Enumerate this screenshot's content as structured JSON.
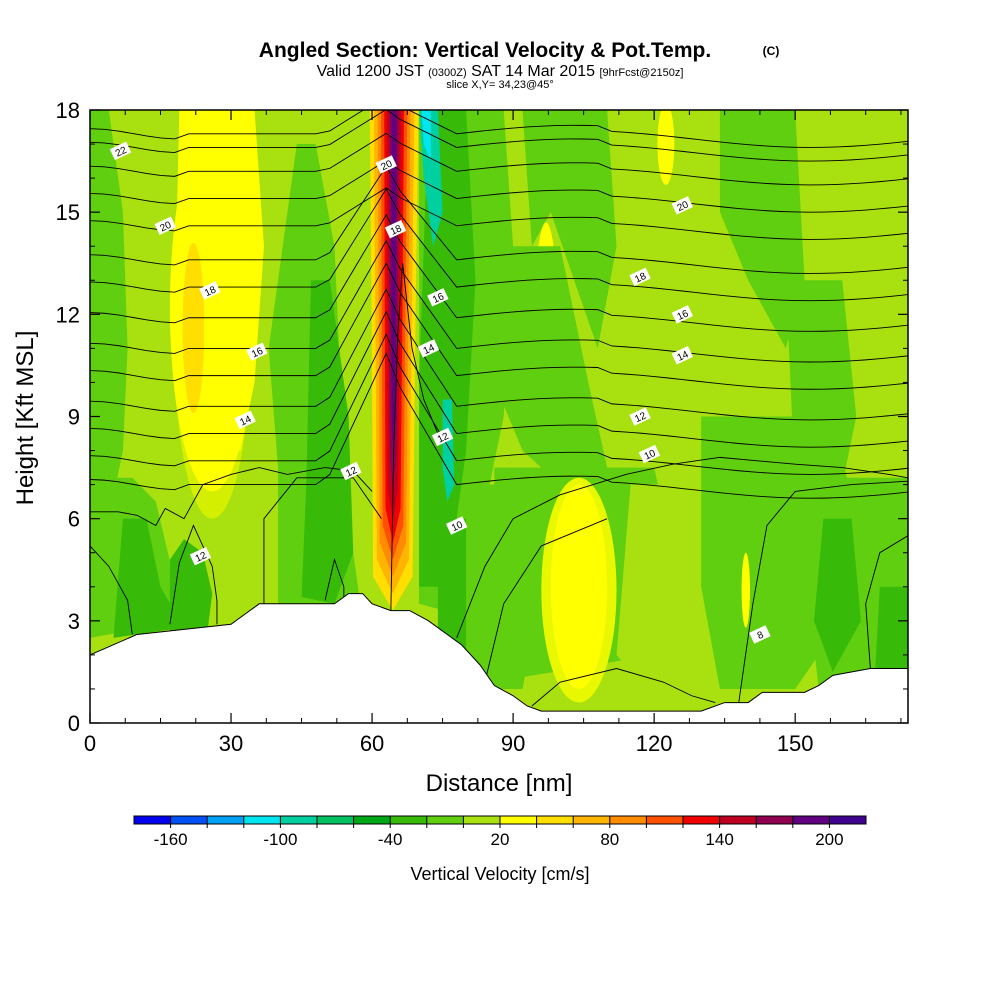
{
  "chart_data": {
    "type": "heatmap",
    "title": "Angled Section: Vertical Velocity & Pot.Temp.",
    "title_mark": "(C)",
    "subtitle": {
      "valid": "Valid 1200 JST",
      "utc": "(0300Z)",
      "date": "SAT 14 Mar 2015",
      "fcst": "[9hrFcst@2150z]",
      "slice": "slice X,Y= 34,23@45°"
    },
    "xlabel": "Distance [nm]",
    "ylabel": "Height [Kft MSL]",
    "xlim": [
      0,
      174
    ],
    "ylim": [
      0,
      18
    ],
    "x_ticks": [
      0,
      30,
      60,
      90,
      120,
      150
    ],
    "y_ticks": [
      0,
      3,
      6,
      9,
      12,
      15,
      18
    ],
    "colorbar": {
      "label": "Vertical Velocity [cm/s]",
      "levels": [
        -180,
        -160,
        -140,
        -120,
        -100,
        -80,
        -60,
        -40,
        -20,
        0,
        20,
        40,
        60,
        80,
        100,
        120,
        140,
        160,
        180,
        200,
        220
      ],
      "colors": [
        "#0000f0",
        "#0050f5",
        "#00a0f5",
        "#00e6f0",
        "#00d0a0",
        "#00c060",
        "#00a818",
        "#38bb08",
        "#60cf10",
        "#a8e010",
        "#ffff00",
        "#ffde00",
        "#ffb400",
        "#ff8c00",
        "#ff5000",
        "#f00000",
        "#c00020",
        "#900050",
        "#600080",
        "#400090"
      ],
      "tick_labels": [
        "-160",
        "-100",
        "-40",
        "20",
        "80",
        "140",
        "200"
      ],
      "tick_values": [
        -160,
        -100,
        -40,
        20,
        80,
        140,
        200
      ]
    },
    "terrain_height": [
      [
        0,
        2.0
      ],
      [
        5,
        2.3
      ],
      [
        10,
        2.6
      ],
      [
        30,
        2.9
      ],
      [
        33,
        3.2
      ],
      [
        36,
        3.5
      ],
      [
        52,
        3.5
      ],
      [
        55,
        3.8
      ],
      [
        58,
        3.8
      ],
      [
        60,
        3.5
      ],
      [
        64,
        3.3
      ],
      [
        68,
        3.3
      ],
      [
        72,
        3.0
      ],
      [
        75,
        2.7
      ],
      [
        79,
        2.3
      ],
      [
        83,
        1.7
      ],
      [
        86,
        1.1
      ],
      [
        90,
        0.8
      ],
      [
        93,
        0.5
      ],
      [
        96,
        0.35
      ],
      [
        130,
        0.35
      ],
      [
        135,
        0.6
      ],
      [
        140,
        0.6
      ],
      [
        143,
        0.9
      ],
      [
        152,
        0.9
      ],
      [
        155,
        1.1
      ],
      [
        158,
        1.4
      ],
      [
        166,
        1.6
      ],
      [
        174,
        1.6
      ]
    ],
    "pot_temp_labels": [
      {
        "text": "22",
        "x": 6.5,
        "y": 16.8
      },
      {
        "text": "20",
        "x": 16,
        "y": 14.6
      },
      {
        "text": "18",
        "x": 25.5,
        "y": 12.7
      },
      {
        "text": "16",
        "x": 35.5,
        "y": 10.9
      },
      {
        "text": "14",
        "x": 33,
        "y": 8.9
      },
      {
        "text": "12",
        "x": 23.5,
        "y": 4.9
      },
      {
        "text": "12",
        "x": 55.5,
        "y": 7.4
      },
      {
        "text": "20",
        "x": 63,
        "y": 16.4
      },
      {
        "text": "18",
        "x": 65,
        "y": 14.5
      },
      {
        "text": "16",
        "x": 74,
        "y": 12.5
      },
      {
        "text": "14",
        "x": 72,
        "y": 11.0
      },
      {
        "text": "12",
        "x": 75,
        "y": 8.4
      },
      {
        "text": "10",
        "x": 78,
        "y": 5.8
      },
      {
        "text": "20",
        "x": 126,
        "y": 15.2
      },
      {
        "text": "18",
        "x": 117,
        "y": 13.1
      },
      {
        "text": "16",
        "x": 126,
        "y": 12.0
      },
      {
        "text": "14",
        "x": 126,
        "y": 10.8
      },
      {
        "text": "12",
        "x": 117,
        "y": 9.0
      },
      {
        "text": "10",
        "x": 119,
        "y": 7.9
      },
      {
        "text": "8",
        "x": 142.5,
        "y": 2.6
      }
    ]
  }
}
